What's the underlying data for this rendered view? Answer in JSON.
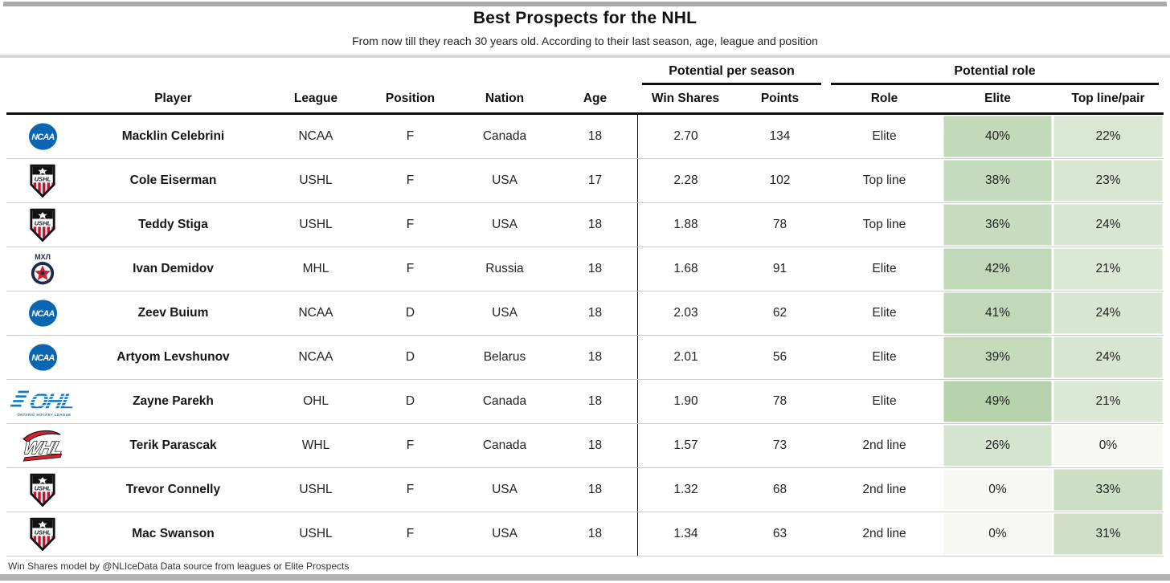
{
  "title": "Best Prospects for the NHL",
  "subtitle": "From now till they reach 30 years old. According to their last season, age, league and position",
  "footer_note": "Win Shares model by @NLIceData Data source from leagues or Elite Prospects",
  "colors": {
    "heat_green_max": "#b7d3ad",
    "heat_neutral": "#f7f7f4",
    "ncaa_blue": "#0a66b2",
    "ushl_red": "#c8102e",
    "mhl_navy": "#1c2b4a",
    "ohl_blue": "#1878be",
    "whl_red": "#d22030",
    "divider_gray": "#d9d9d9",
    "bar_gray": "#a9a9a9"
  },
  "logos": {
    "ncaa": {
      "text": "NCAA"
    },
    "ushl": {
      "text": "USHL"
    },
    "mhl": {
      "text": "МХЛ"
    },
    "ohl": {
      "text": "OHL",
      "caption": "ONTARIO HOCKEY LEAGUE"
    },
    "whl": {
      "text": "WHL"
    }
  },
  "chart_data": {
    "type": "table",
    "title": "Best Prospects for the NHL",
    "subtitle": "From now till they reach 30 years old. According to their last season, age, league and position",
    "column_groups": [
      {
        "label": "Potential per season",
        "columns": [
          "Win Shares",
          "Points"
        ]
      },
      {
        "label": "Potential role",
        "columns": [
          "Role",
          "Elite",
          "Top line/pair"
        ]
      }
    ],
    "columns": [
      "Player",
      "League",
      "Position",
      "Nation",
      "Age",
      "Win Shares",
      "Points",
      "Role",
      "Elite",
      "Top line/pair"
    ],
    "rows": [
      {
        "logo": "ncaa",
        "player": "Macklin Celebrini",
        "league": "NCAA",
        "position": "F",
        "nation": "Canada",
        "age": "18",
        "win_shares": "2.70",
        "points": "134",
        "role": "Elite",
        "elite": "40%",
        "top": "22%",
        "elite_bg": "#c3daba",
        "top_bg": "#dae7d4"
      },
      {
        "logo": "ushl",
        "player": "Cole Eiserman",
        "league": "USHL",
        "position": "F",
        "nation": "USA",
        "age": "17",
        "win_shares": "2.28",
        "points": "102",
        "role": "Top line",
        "elite": "38%",
        "top": "23%",
        "elite_bg": "#c5dbbd",
        "top_bg": "#d9e6d3"
      },
      {
        "logo": "ushl",
        "player": "Teddy Stiga",
        "league": "USHL",
        "position": "F",
        "nation": "USA",
        "age": "18",
        "win_shares": "1.88",
        "points": "78",
        "role": "Top line",
        "elite": "36%",
        "top": "24%",
        "elite_bg": "#c8ddc0",
        "top_bg": "#d8e5d1"
      },
      {
        "logo": "mhl",
        "player": "Ivan Demidov",
        "league": "MHL",
        "position": "F",
        "nation": "Russia",
        "age": "18",
        "win_shares": "1.68",
        "points": "91",
        "role": "Elite",
        "elite": "42%",
        "top": "21%",
        "elite_bg": "#c0d8b7",
        "top_bg": "#dce8d6"
      },
      {
        "logo": "ncaa",
        "player": "Zeev Buium",
        "league": "NCAA",
        "position": "D",
        "nation": "USA",
        "age": "18",
        "win_shares": "2.03",
        "points": "62",
        "role": "Elite",
        "elite": "41%",
        "top": "24%",
        "elite_bg": "#c1d9b9",
        "top_bg": "#d8e5d1"
      },
      {
        "logo": "ncaa",
        "player": "Artyom Levshunov",
        "league": "NCAA",
        "position": "D",
        "nation": "Belarus",
        "age": "18",
        "win_shares": "2.01",
        "points": "56",
        "role": "Elite",
        "elite": "39%",
        "top": "24%",
        "elite_bg": "#c4dabb",
        "top_bg": "#d8e5d1"
      },
      {
        "logo": "ohl",
        "player": "Zayne Parekh",
        "league": "OHL",
        "position": "D",
        "nation": "Canada",
        "age": "18",
        "win_shares": "1.90",
        "points": "78",
        "role": "Elite",
        "elite": "49%",
        "top": "21%",
        "elite_bg": "#b7d3ad",
        "top_bg": "#dce8d6"
      },
      {
        "logo": "whl",
        "player": "Terik Parascak",
        "league": "WHL",
        "position": "F",
        "nation": "Canada",
        "age": "18",
        "win_shares": "1.57",
        "points": "73",
        "role": "2nd line",
        "elite": "26%",
        "top": "0%",
        "elite_bg": "#d5e4ce",
        "top_bg": "#f7f7f4"
      },
      {
        "logo": "ushl",
        "player": "Trevor Connelly",
        "league": "USHL",
        "position": "F",
        "nation": "USA",
        "age": "18",
        "win_shares": "1.32",
        "points": "68",
        "role": "2nd line",
        "elite": "0%",
        "top": "33%",
        "elite_bg": "#f7f7f4",
        "top_bg": "#ccdfc4"
      },
      {
        "logo": "ushl",
        "player": "Mac Swanson",
        "league": "USHL",
        "position": "F",
        "nation": "USA",
        "age": "18",
        "win_shares": "1.34",
        "points": "63",
        "role": "2nd line",
        "elite": "0%",
        "top": "31%",
        "elite_bg": "#f7f7f4",
        "top_bg": "#cfe0c7"
      }
    ]
  }
}
